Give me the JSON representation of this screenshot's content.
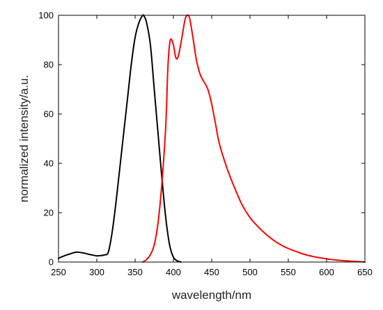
{
  "chart_data": {
    "type": "line",
    "title": "",
    "xlabel": "wavelength/nm",
    "ylabel": "normalized intensity/a.u.",
    "xlim": [
      250,
      650
    ],
    "ylim": [
      0,
      100
    ],
    "xticks": [
      250,
      300,
      350,
      400,
      450,
      500,
      550,
      600,
      650
    ],
    "yticks": [
      0,
      20,
      40,
      60,
      80,
      100
    ],
    "grid": false,
    "legend": "none",
    "series": [
      {
        "color": "#000000",
        "x": [
          250,
          255,
          260,
          265,
          270,
          275,
          280,
          285,
          290,
          295,
          300,
          305,
          310,
          315,
          320,
          325,
          330,
          335,
          340,
          345,
          350,
          355,
          360,
          362,
          365,
          370,
          375,
          380,
          385,
          390,
          395,
          400,
          405,
          410
        ],
        "y": [
          1.5,
          2.2,
          2.8,
          3.3,
          3.8,
          4.0,
          3.8,
          3.5,
          3.1,
          2.8,
          2.5,
          2.6,
          2.9,
          4.0,
          12,
          24,
          38,
          52,
          66,
          80,
          91,
          97,
          100,
          99.5,
          97,
          88,
          70,
          52,
          34,
          18,
          7,
          2,
          0.5,
          0
        ]
      },
      {
        "color": "#ff0000",
        "x": [
          360,
          365,
          370,
          375,
          380,
          385,
          390,
          393,
          396,
          400,
          403,
          406,
          410,
          415,
          418,
          421,
          425,
          430,
          435,
          440,
          445,
          450,
          455,
          460,
          470,
          480,
          490,
          500,
          510,
          520,
          530,
          540,
          550,
          560,
          570,
          580,
          590,
          600,
          610,
          620,
          630,
          640,
          650
        ],
        "y": [
          0,
          1,
          3,
          7,
          16,
          32,
          55,
          80,
          90,
          88,
          83,
          83,
          89,
          98,
          100,
          99,
          92,
          82,
          76,
          73,
          70,
          64,
          56,
          48,
          38,
          30,
          23,
          18,
          14.5,
          11.5,
          9,
          7,
          5.5,
          4.3,
          3.2,
          2.4,
          1.8,
          1.3,
          0.9,
          0.6,
          0.4,
          0.2,
          0
        ]
      }
    ]
  }
}
